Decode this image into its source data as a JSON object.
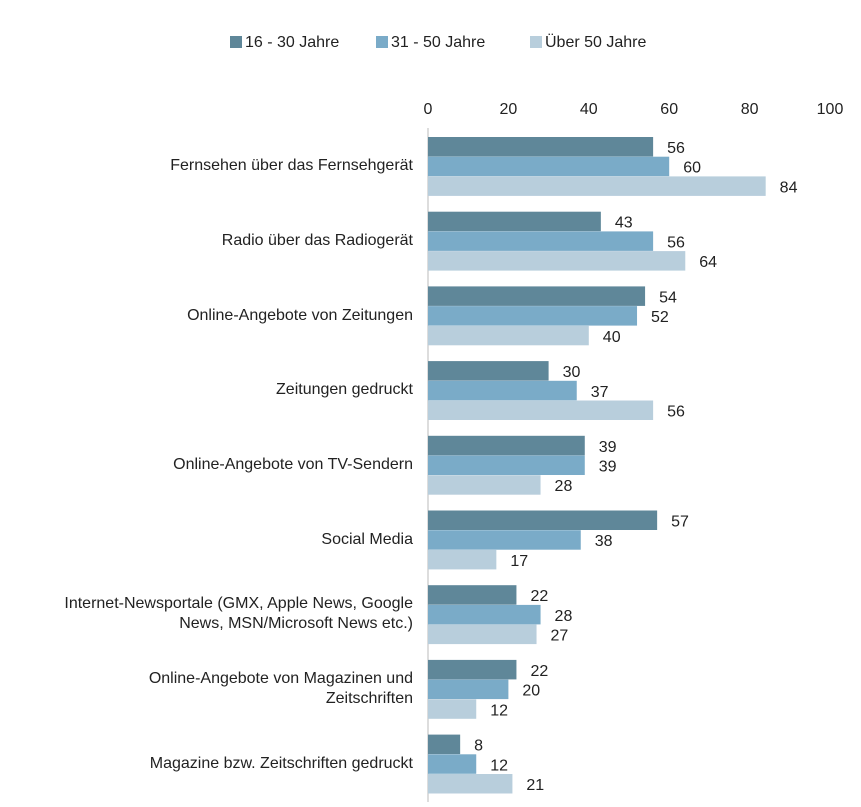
{
  "chart_data": {
    "type": "bar",
    "orientation": "horizontal",
    "categories": [
      "Fernsehen über das Fernsehgerät",
      "Radio über das Radiogerät",
      "Online-Angebote von Zeitungen",
      "Zeitungen gedruckt",
      "Online-Angebote von TV-Sendern",
      "Social Media",
      "Internet-Newsportale (GMX, Apple News, Google News, MSN/Microsoft News etc.)",
      "Online-Angebote von Magazinen und Zeitschriften",
      "Magazine bzw. Zeitschriften gedruckt"
    ],
    "series": [
      {
        "name": "16 - 30 Jahre",
        "color": "#5f8799",
        "values": [
          56,
          43,
          54,
          30,
          39,
          57,
          22,
          22,
          8
        ]
      },
      {
        "name": "31 - 50 Jahre",
        "color": "#7aabc8",
        "values": [
          60,
          56,
          52,
          37,
          39,
          38,
          28,
          20,
          12
        ]
      },
      {
        "name": "Über 50 Jahre",
        "color": "#b8cedc",
        "values": [
          84,
          64,
          40,
          56,
          28,
          17,
          27,
          12,
          21
        ]
      }
    ],
    "xlim": [
      0,
      100
    ],
    "xticks": [
      0,
      20,
      40,
      60,
      80,
      100
    ],
    "grid": false,
    "legend": "top"
  }
}
